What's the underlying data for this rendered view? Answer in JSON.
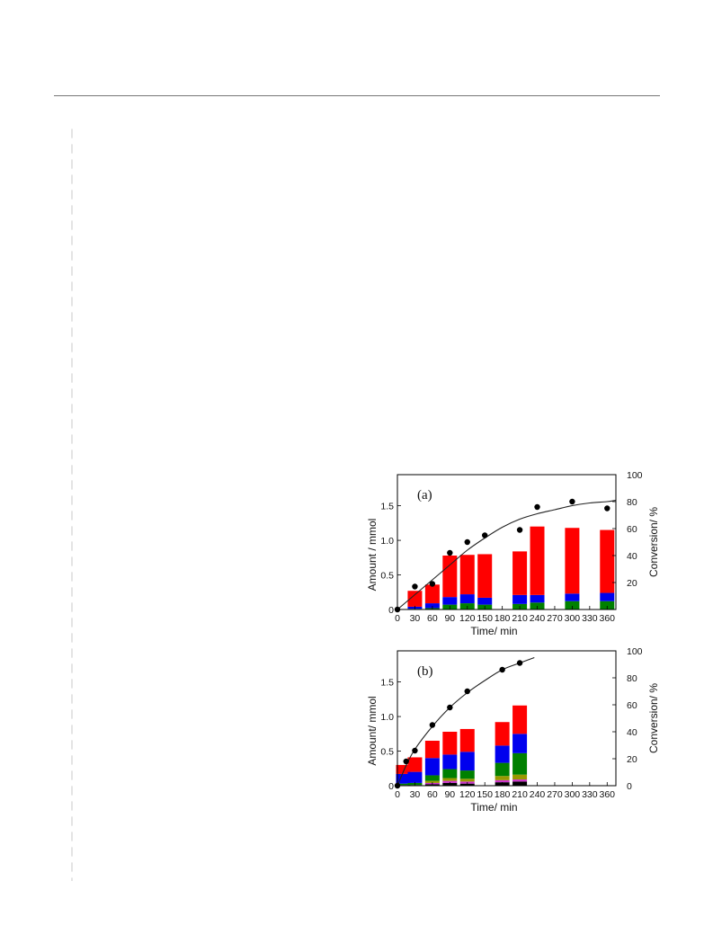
{
  "colors": {
    "red": "#ff0000",
    "blue": "#0000ee",
    "green": "#008000",
    "olive": "#999900",
    "magenta": "#cc33cc",
    "black": "#000000"
  },
  "chart_data": [
    {
      "type": "bar",
      "panel_label": "(a)",
      "xlabel": "Time/ min",
      "ylabel": "Amount / mmol",
      "y2label": "Conversion/ %",
      "xlim": [
        0,
        375
      ],
      "ylim": [
        0,
        1.95
      ],
      "y2lim": [
        0,
        100
      ],
      "x_ticks": [
        "0",
        "30",
        "60",
        "90",
        "120",
        "150",
        "180",
        "210",
        "240",
        "270",
        "300",
        "330",
        "360"
      ],
      "y_ticks": [
        "0",
        "0.5",
        "1.0",
        "1.5"
      ],
      "y2_ticks": [
        "20",
        "40",
        "60",
        "80",
        "100"
      ],
      "stacked_bars": [
        {
          "x": 30,
          "segments": [
            {
              "color": "green",
              "value": 0.01
            },
            {
              "color": "blue",
              "value": 0.03
            },
            {
              "color": "red",
              "value": 0.23
            }
          ]
        },
        {
          "x": 60,
          "segments": [
            {
              "color": "green",
              "value": 0.02
            },
            {
              "color": "blue",
              "value": 0.07
            },
            {
              "color": "red",
              "value": 0.27
            }
          ]
        },
        {
          "x": 90,
          "segments": [
            {
              "color": "green",
              "value": 0.07
            },
            {
              "color": "blue",
              "value": 0.11
            },
            {
              "color": "red",
              "value": 0.6
            }
          ]
        },
        {
          "x": 120,
          "segments": [
            {
              "color": "green",
              "value": 0.09
            },
            {
              "color": "blue",
              "value": 0.13
            },
            {
              "color": "red",
              "value": 0.57
            }
          ]
        },
        {
          "x": 150,
          "segments": [
            {
              "color": "green",
              "value": 0.07
            },
            {
              "color": "blue",
              "value": 0.1
            },
            {
              "color": "red",
              "value": 0.63
            }
          ]
        },
        {
          "x": 210,
          "segments": [
            {
              "color": "green",
              "value": 0.08
            },
            {
              "color": "blue",
              "value": 0.13
            },
            {
              "color": "red",
              "value": 0.63
            }
          ]
        },
        {
          "x": 240,
          "segments": [
            {
              "color": "green",
              "value": 0.1
            },
            {
              "color": "blue",
              "value": 0.11
            },
            {
              "color": "red",
              "value": 0.99
            }
          ]
        },
        {
          "x": 300,
          "segments": [
            {
              "color": "green",
              "value": 0.12
            },
            {
              "color": "blue",
              "value": 0.11
            },
            {
              "color": "red",
              "value": 0.95
            }
          ]
        },
        {
          "x": 360,
          "segments": [
            {
              "color": "green",
              "value": 0.12
            },
            {
              "color": "blue",
              "value": 0.12
            },
            {
              "color": "red",
              "value": 0.91
            }
          ]
        }
      ],
      "conversion_points": [
        {
          "x": 0,
          "y": 0
        },
        {
          "x": 30,
          "y": 17
        },
        {
          "x": 60,
          "y": 19
        },
        {
          "x": 90,
          "y": 42
        },
        {
          "x": 120,
          "y": 50
        },
        {
          "x": 150,
          "y": 55
        },
        {
          "x": 210,
          "y": 59
        },
        {
          "x": 240,
          "y": 76
        },
        {
          "x": 300,
          "y": 80
        },
        {
          "x": 360,
          "y": 75
        }
      ],
      "conversion_curve": [
        {
          "x": 0,
          "y": 0
        },
        {
          "x": 30,
          "y": 11
        },
        {
          "x": 60,
          "y": 22
        },
        {
          "x": 90,
          "y": 33
        },
        {
          "x": 120,
          "y": 44
        },
        {
          "x": 150,
          "y": 53
        },
        {
          "x": 180,
          "y": 61
        },
        {
          "x": 210,
          "y": 67
        },
        {
          "x": 240,
          "y": 71
        },
        {
          "x": 270,
          "y": 74
        },
        {
          "x": 300,
          "y": 77
        },
        {
          "x": 330,
          "y": 79
        },
        {
          "x": 360,
          "y": 80
        },
        {
          "x": 375,
          "y": 81
        }
      ]
    },
    {
      "type": "bar",
      "panel_label": "(b)",
      "xlabel": "Time/ min",
      "ylabel": "Amount/ mmol",
      "y2label": "Conversion/ %",
      "xlim": [
        0,
        375
      ],
      "ylim": [
        0,
        1.95
      ],
      "y2lim": [
        0,
        100
      ],
      "x_ticks": [
        "0",
        "30",
        "60",
        "90",
        "120",
        "150",
        "180",
        "210",
        "240",
        "270",
        "300",
        "330",
        "360"
      ],
      "y_ticks": [
        "0",
        "0.5",
        "1.0",
        "1.5"
      ],
      "y2_ticks": [
        "0",
        "20",
        "40",
        "60",
        "80",
        "100"
      ],
      "stacked_bars": [
        {
          "x": 10,
          "segments": [
            {
              "color": "black",
              "value": 0.01
            },
            {
              "color": "green",
              "value": 0.02
            },
            {
              "color": "blue",
              "value": 0.14
            },
            {
              "color": "red",
              "value": 0.13
            }
          ]
        },
        {
          "x": 30,
          "segments": [
            {
              "color": "black",
              "value": 0.01
            },
            {
              "color": "green",
              "value": 0.03
            },
            {
              "color": "blue",
              "value": 0.16
            },
            {
              "color": "red",
              "value": 0.21
            }
          ]
        },
        {
          "x": 60,
          "segments": [
            {
              "color": "black",
              "value": 0.02
            },
            {
              "color": "magenta",
              "value": 0.02
            },
            {
              "color": "olive",
              "value": 0.03
            },
            {
              "color": "green",
              "value": 0.08
            },
            {
              "color": "blue",
              "value": 0.25
            },
            {
              "color": "red",
              "value": 0.25
            }
          ]
        },
        {
          "x": 90,
          "segments": [
            {
              "color": "black",
              "value": 0.04
            },
            {
              "color": "magenta",
              "value": 0.03
            },
            {
              "color": "olive",
              "value": 0.04
            },
            {
              "color": "green",
              "value": 0.13
            },
            {
              "color": "blue",
              "value": 0.21
            },
            {
              "color": "red",
              "value": 0.33
            }
          ]
        },
        {
          "x": 120,
          "segments": [
            {
              "color": "black",
              "value": 0.03
            },
            {
              "color": "magenta",
              "value": 0.03
            },
            {
              "color": "olive",
              "value": 0.04
            },
            {
              "color": "green",
              "value": 0.12
            },
            {
              "color": "blue",
              "value": 0.27
            },
            {
              "color": "red",
              "value": 0.33
            }
          ]
        },
        {
          "x": 180,
          "segments": [
            {
              "color": "black",
              "value": 0.05
            },
            {
              "color": "magenta",
              "value": 0.03
            },
            {
              "color": "olive",
              "value": 0.06
            },
            {
              "color": "green",
              "value": 0.19
            },
            {
              "color": "blue",
              "value": 0.25
            },
            {
              "color": "red",
              "value": 0.34
            }
          ]
        },
        {
          "x": 210,
          "segments": [
            {
              "color": "black",
              "value": 0.06
            },
            {
              "color": "magenta",
              "value": 0.03
            },
            {
              "color": "olive",
              "value": 0.07
            },
            {
              "color": "green",
              "value": 0.31
            },
            {
              "color": "blue",
              "value": 0.28
            },
            {
              "color": "red",
              "value": 0.41
            }
          ]
        }
      ],
      "conversion_points": [
        {
          "x": 0,
          "y": 0
        },
        {
          "x": 15,
          "y": 18
        },
        {
          "x": 30,
          "y": 26
        },
        {
          "x": 60,
          "y": 45
        },
        {
          "x": 90,
          "y": 58
        },
        {
          "x": 120,
          "y": 70
        },
        {
          "x": 180,
          "y": 86
        },
        {
          "x": 210,
          "y": 91
        }
      ],
      "conversion_curve": [
        {
          "x": 0,
          "y": 0
        },
        {
          "x": 15,
          "y": 15
        },
        {
          "x": 30,
          "y": 27
        },
        {
          "x": 60,
          "y": 44
        },
        {
          "x": 90,
          "y": 58
        },
        {
          "x": 120,
          "y": 69
        },
        {
          "x": 150,
          "y": 78
        },
        {
          "x": 180,
          "y": 86
        },
        {
          "x": 210,
          "y": 91
        },
        {
          "x": 235,
          "y": 95
        }
      ]
    }
  ]
}
